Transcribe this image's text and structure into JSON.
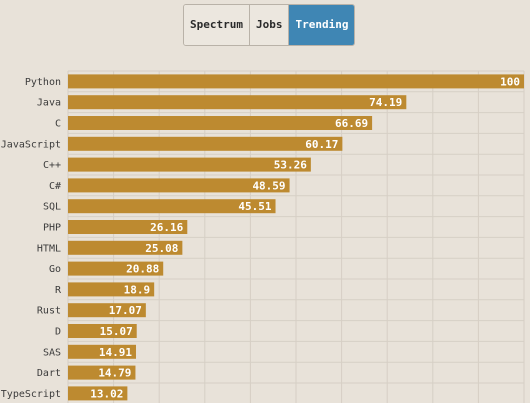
{
  "tabs": [
    {
      "label": "Spectrum",
      "active": false
    },
    {
      "label": "Jobs",
      "active": false
    },
    {
      "label": "Trending",
      "active": true
    }
  ],
  "colors": {
    "bar": "#bd8a30",
    "tab_active": "#3f86b4",
    "background": "#e8e2d9"
  },
  "chart_data": {
    "type": "bar",
    "orientation": "horizontal",
    "categories": [
      "Python",
      "Java",
      "C",
      "JavaScript",
      "C++",
      "C#",
      "SQL",
      "PHP",
      "HTML",
      "Go",
      "R",
      "Rust",
      "D",
      "SAS",
      "Dart",
      "TypeScript"
    ],
    "values": [
      100,
      74.19,
      66.69,
      60.17,
      53.26,
      48.59,
      45.51,
      26.16,
      25.08,
      20.88,
      18.9,
      17.07,
      15.07,
      14.91,
      14.79,
      13.02
    ],
    "xlim": [
      0,
      100
    ],
    "grid": true
  }
}
